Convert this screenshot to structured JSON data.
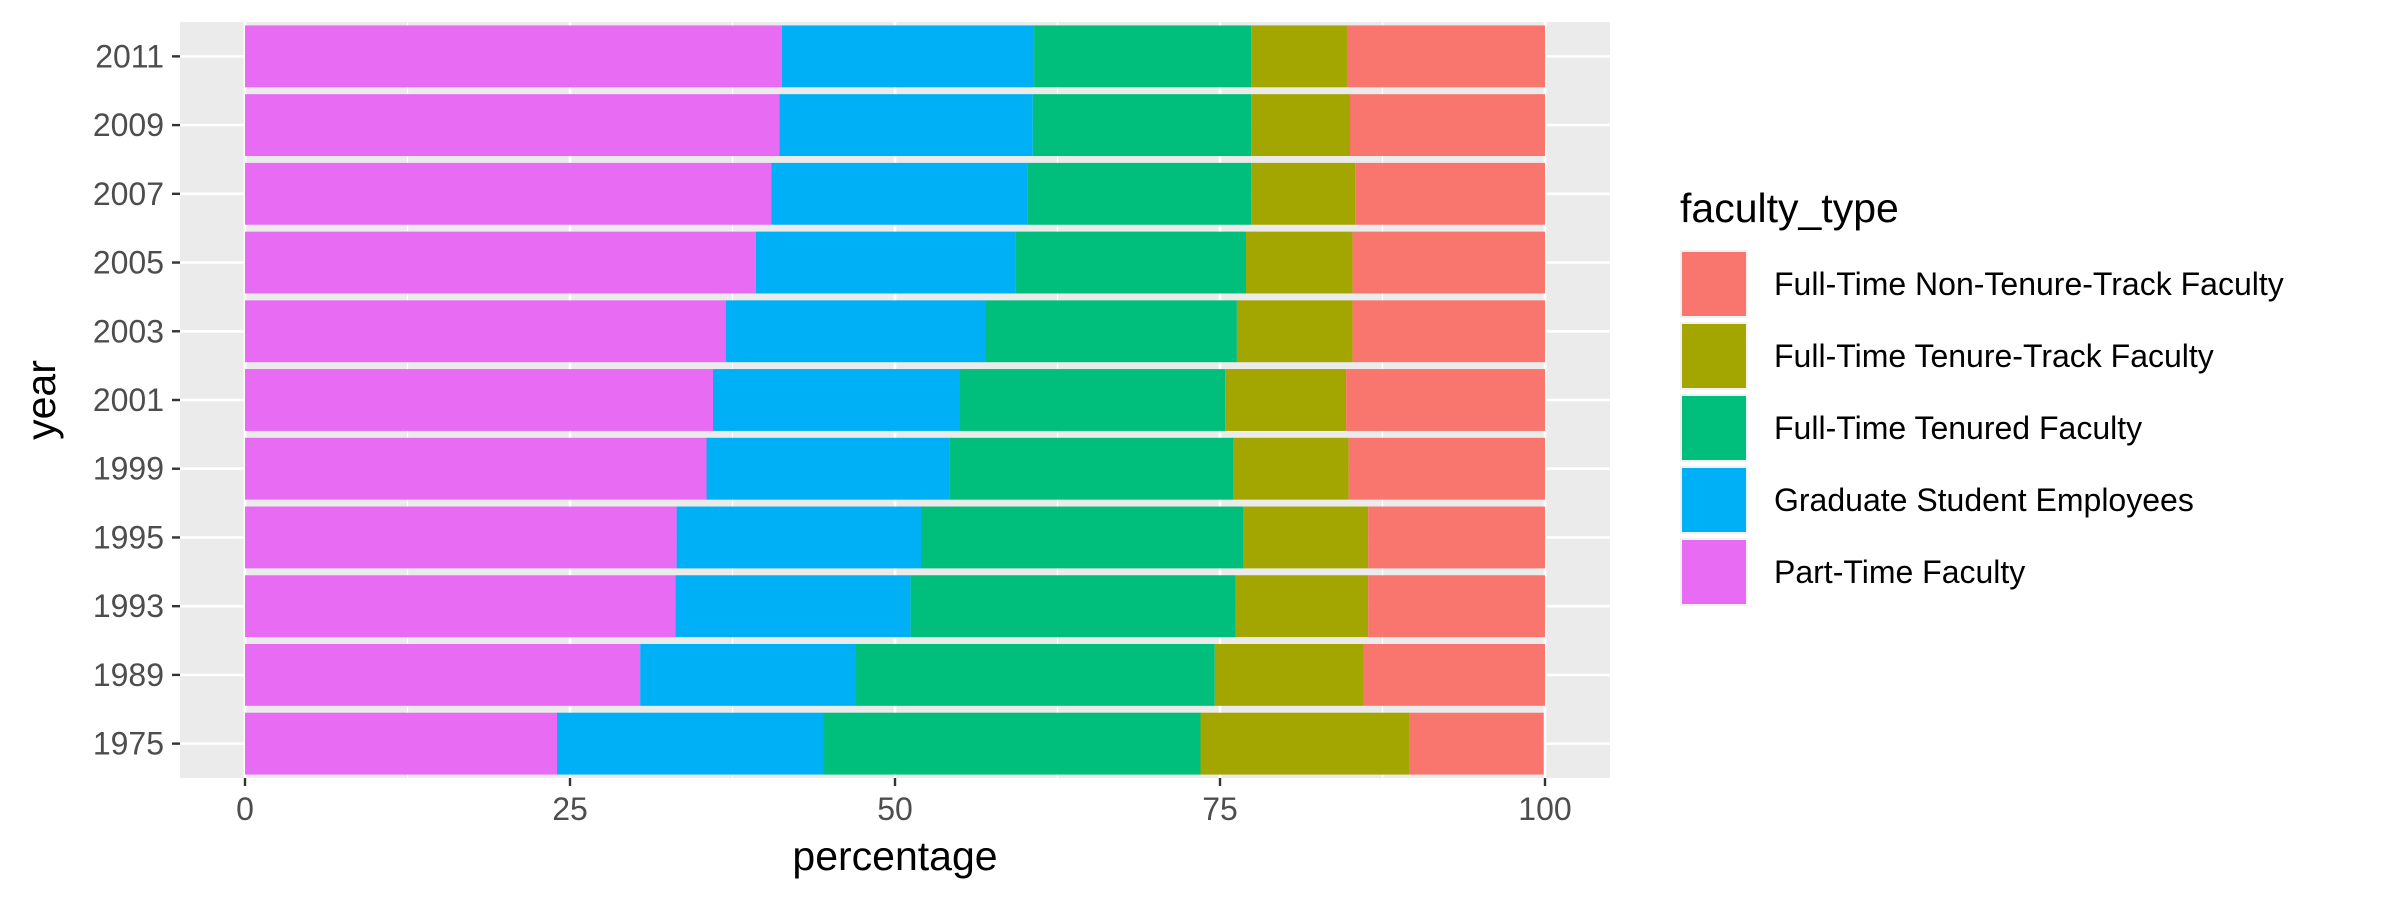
{
  "chart_data": {
    "type": "bar",
    "orientation": "horizontal",
    "stacked": true,
    "xlabel": "percentage",
    "ylabel": "year",
    "xlim": [
      -5,
      105
    ],
    "xticks": [
      0,
      25,
      50,
      75,
      100
    ],
    "xtick_labels": [
      "0",
      "25",
      "50",
      "75",
      "100"
    ],
    "grid": true,
    "legend_position": "right",
    "categories": [
      "1975",
      "1989",
      "1993",
      "1995",
      "1999",
      "2001",
      "2003",
      "2005",
      "2007",
      "2009",
      "2011"
    ],
    "stack_order": [
      "Part-Time Faculty",
      "Graduate Student Employees",
      "Full-Time Tenured Faculty",
      "Full-Time Tenure-Track Faculty",
      "Full-Time Non-Tenure-Track Faculty"
    ],
    "series": [
      {
        "name": "Part-Time Faculty",
        "color": "#E76BF3",
        "values": [
          24.0,
          30.4,
          33.1,
          33.2,
          35.5,
          36.0,
          37.0,
          39.3,
          40.5,
          41.1,
          41.3
        ]
      },
      {
        "name": "Graduate Student Employees",
        "color": "#00B0F6",
        "values": [
          20.5,
          16.6,
          18.1,
          18.8,
          18.7,
          19.0,
          20.0,
          20.0,
          19.7,
          19.5,
          19.4
        ]
      },
      {
        "name": "Full-Time Tenured Faculty",
        "color": "#00BF7D",
        "values": [
          29.0,
          27.6,
          25.0,
          24.8,
          21.8,
          20.4,
          19.3,
          17.7,
          17.2,
          16.8,
          16.7
        ]
      },
      {
        "name": "Full-Time Tenure-Track Faculty",
        "color": "#A3A500",
        "values": [
          16.1,
          11.4,
          10.2,
          9.6,
          8.9,
          9.3,
          8.9,
          8.2,
          8.0,
          7.6,
          7.4
        ]
      },
      {
        "name": "Full-Time Non-Tenure-Track Faculty",
        "color": "#F8766D",
        "values": [
          10.3,
          14.0,
          13.6,
          13.6,
          15.1,
          15.3,
          14.8,
          14.8,
          14.6,
          15.0,
          15.2
        ]
      }
    ]
  },
  "legend": {
    "title": "faculty_type",
    "items": [
      {
        "label": "Full-Time Non-Tenure-Track Faculty",
        "color": "#F8766D"
      },
      {
        "label": "Full-Time Tenure-Track Faculty",
        "color": "#A3A500"
      },
      {
        "label": "Full-Time Tenured Faculty",
        "color": "#00BF7D"
      },
      {
        "label": "Graduate Student Employees",
        "color": "#00B0F6"
      },
      {
        "label": "Part-Time Faculty",
        "color": "#E76BF3"
      }
    ]
  }
}
